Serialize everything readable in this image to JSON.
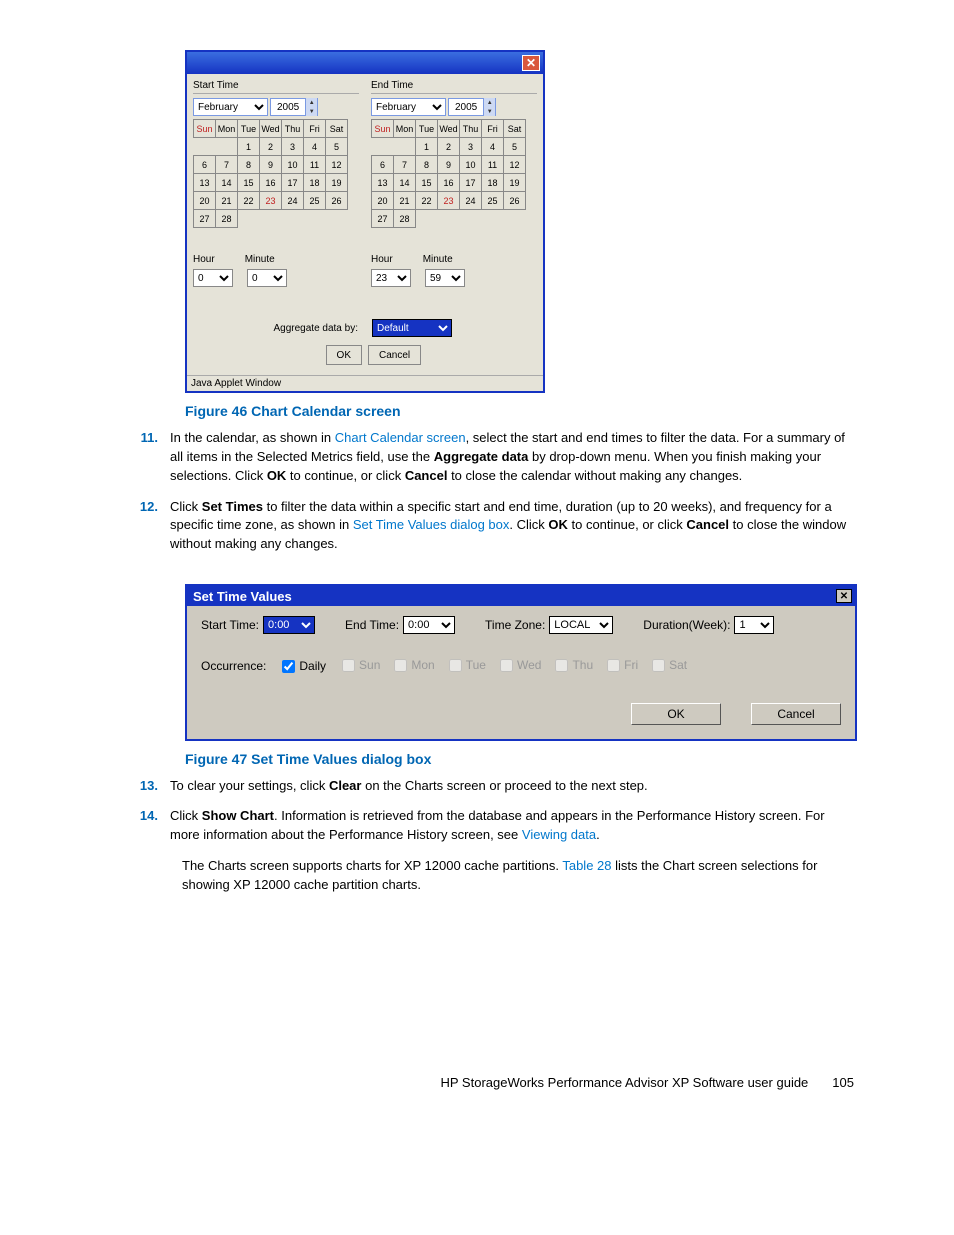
{
  "fig1": {
    "caption": "Figure 46 Chart Calendar screen",
    "start_label": "Start Time",
    "end_label": "End Time",
    "month": "February",
    "year": "2005",
    "days": [
      "Sun",
      "Mon",
      "Tue",
      "Wed",
      "Thu",
      "Fri",
      "Sat"
    ],
    "weeks": [
      [
        "",
        "",
        "1",
        "2",
        "3",
        "4",
        "5"
      ],
      [
        "6",
        "7",
        "8",
        "9",
        "10",
        "11",
        "12"
      ],
      [
        "13",
        "14",
        "15",
        "16",
        "17",
        "18",
        "19"
      ],
      [
        "20",
        "21",
        "22",
        "23",
        "24",
        "25",
        "26"
      ],
      [
        "27",
        "28",
        "",
        "",
        "",
        "",
        ""
      ]
    ],
    "selected_day": "23",
    "hour_label": "Hour",
    "minute_label": "Minute",
    "start_hour": "0",
    "start_minute": "0",
    "end_hour": "23",
    "end_minute": "59",
    "agg_label": "Aggregate data by:",
    "agg_value": "Default",
    "ok": "OK",
    "cancel": "Cancel",
    "status": "Java Applet Window"
  },
  "steps1": {
    "n11": "11.",
    "t11a": "In the calendar, as shown in ",
    "t11link": "Chart Calendar screen",
    "t11b": ", select the start and end times to filter the data. For a summary of all items in the Selected Metrics field, use the ",
    "t11bold1": "Aggregate data",
    "t11c": " by drop-down menu. When you finish making your selections. Click ",
    "t11bold2": "OK",
    "t11d": " to continue, or click ",
    "t11bold3": "Cancel",
    "t11e": " to close the calendar without making any changes.",
    "n12": "12.",
    "t12a": "Click ",
    "t12bold1": "Set Times",
    "t12b": " to filter the data within a specific start and end time, duration (up to 20 weeks), and frequency for a specific time zone, as shown in ",
    "t12link": "Set Time Values dialog box",
    "t12c": ". Click ",
    "t12bold2": "OK",
    "t12d": " to continue, or click ",
    "t12bold3": "Cancel",
    "t12e": " to close the window without making any changes."
  },
  "fig2": {
    "title": "Set Time Values",
    "start_label": "Start Time:",
    "start_val": "0:00",
    "end_label": "End Time:",
    "end_val": "0:00",
    "tz_label": "Time Zone:",
    "tz_val": "LOCAL",
    "dur_label": "Duration(Week):",
    "dur_val": "1",
    "occ_label": "Occurrence:",
    "daily": "Daily",
    "days": [
      "Sun",
      "Mon",
      "Tue",
      "Wed",
      "Thu",
      "Fri",
      "Sat"
    ],
    "ok": "OK",
    "cancel": "Cancel",
    "caption": "Figure 47 Set Time Values dialog box"
  },
  "steps2": {
    "n13": "13.",
    "t13a": "To clear your settings, click ",
    "t13bold": "Clear",
    "t13b": " on the Charts screen or proceed to the next step.",
    "n14": "14.",
    "t14a": "Click ",
    "t14bold": "Show Chart",
    "t14b": ". Information is retrieved from the database and appears in the Performance History screen. For more information about the Performance History screen, see ",
    "t14link": "Viewing data",
    "t14c": "."
  },
  "para": {
    "a": "The Charts screen supports charts for XP 12000 cache partitions. ",
    "link": "Table 28",
    "b": " lists the Chart screen selections for showing XP 12000 cache partition charts."
  },
  "footer": {
    "text": "HP StorageWorks Performance Advisor XP Software user guide",
    "page": "105"
  }
}
